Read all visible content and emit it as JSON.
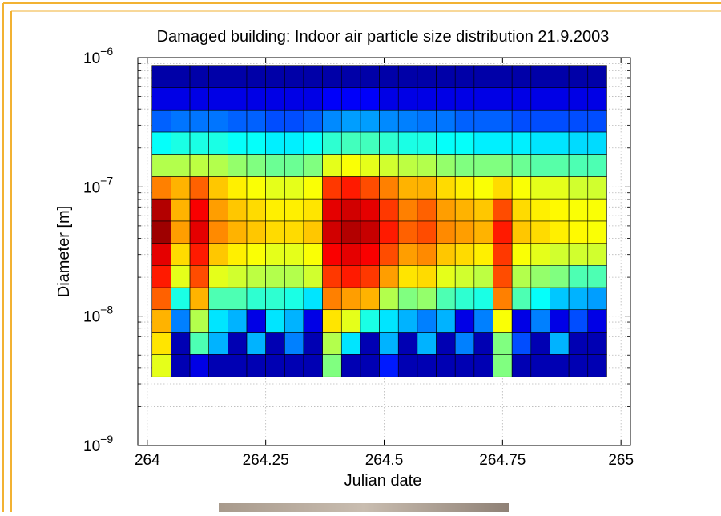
{
  "chart_data": {
    "type": "heatmap",
    "title": "Damaged building: Indoor air particle size distribution 21.9.2003",
    "x_label": "Julian date",
    "y_label": "Diameter [m]",
    "xlim": [
      263.98,
      265.02
    ],
    "xticks": [
      264,
      264.25,
      264.5,
      264.75,
      265
    ],
    "ylim": [
      1e-09,
      1e-06
    ],
    "yscale": "log",
    "yticks": [
      {
        "value": 1e-09,
        "label": "10",
        "exponent": "−9"
      },
      {
        "value": 1e-08,
        "label": "10",
        "exponent": "−8"
      },
      {
        "value": 1e-07,
        "label": "10",
        "exponent": "−7"
      },
      {
        "value": 1e-06,
        "label": "10",
        "exponent": "−6"
      }
    ],
    "grid": true,
    "colormap": "jet",
    "clim": [
      0,
      1
    ],
    "x_edges": [
      264.01,
      264.05,
      264.09,
      264.13,
      264.17,
      264.21,
      264.25,
      264.29,
      264.33,
      264.37,
      264.41,
      264.45,
      264.49,
      264.53,
      264.57,
      264.61,
      264.65,
      264.69,
      264.73,
      264.77,
      264.81,
      264.85,
      264.89,
      264.93,
      264.97
    ],
    "y_edges": [
      8.71e-07,
      5.86e-07,
      3.94e-07,
      2.65e-07,
      1.79e-07,
      1.2e-07,
      8.09e-08,
      5.44e-08,
      3.66e-08,
      2.47e-08,
      1.66e-08,
      1.12e-08,
      7.52e-09,
      5.06e-09,
      3.4e-09
    ],
    "z": [
      [
        0.04,
        0.04,
        0.04,
        0.04,
        0.04,
        0.04,
        0.04,
        0.04,
        0.04,
        0.04,
        0.04,
        0.04,
        0.04,
        0.04,
        0.04,
        0.04,
        0.04,
        0.04,
        0.04,
        0.04,
        0.04,
        0.04,
        0.04,
        0.04
      ],
      [
        0.1,
        0.1,
        0.1,
        0.1,
        0.1,
        0.1,
        0.1,
        0.1,
        0.1,
        0.12,
        0.12,
        0.12,
        0.1,
        0.1,
        0.1,
        0.1,
        0.1,
        0.1,
        0.1,
        0.1,
        0.1,
        0.1,
        0.1,
        0.1
      ],
      [
        0.22,
        0.24,
        0.24,
        0.24,
        0.22,
        0.22,
        0.2,
        0.2,
        0.22,
        0.26,
        0.28,
        0.28,
        0.26,
        0.25,
        0.24,
        0.24,
        0.22,
        0.22,
        0.22,
        0.2,
        0.2,
        0.2,
        0.2,
        0.2
      ],
      [
        0.38,
        0.4,
        0.4,
        0.4,
        0.38,
        0.38,
        0.36,
        0.36,
        0.38,
        0.42,
        0.44,
        0.44,
        0.42,
        0.4,
        0.4,
        0.38,
        0.38,
        0.36,
        0.36,
        0.36,
        0.35,
        0.35,
        0.34,
        0.34
      ],
      [
        0.55,
        0.55,
        0.56,
        0.55,
        0.52,
        0.5,
        0.48,
        0.48,
        0.5,
        0.6,
        0.62,
        0.6,
        0.58,
        0.56,
        0.55,
        0.52,
        0.5,
        0.5,
        0.5,
        0.48,
        0.46,
        0.46,
        0.45,
        0.45
      ],
      [
        0.75,
        0.7,
        0.78,
        0.68,
        0.64,
        0.62,
        0.6,
        0.6,
        0.62,
        0.82,
        0.85,
        0.8,
        0.75,
        0.7,
        0.7,
        0.66,
        0.64,
        0.62,
        0.66,
        0.62,
        0.6,
        0.6,
        0.58,
        0.58
      ],
      [
        0.95,
        0.7,
        0.88,
        0.72,
        0.68,
        0.66,
        0.64,
        0.64,
        0.65,
        0.9,
        0.92,
        0.9,
        0.82,
        0.75,
        0.78,
        0.72,
        0.7,
        0.68,
        0.8,
        0.66,
        0.64,
        0.63,
        0.62,
        0.62
      ],
      [
        0.97,
        0.72,
        0.9,
        0.74,
        0.7,
        0.68,
        0.66,
        0.66,
        0.68,
        0.92,
        0.95,
        0.93,
        0.85,
        0.78,
        0.8,
        0.74,
        0.72,
        0.7,
        0.85,
        0.68,
        0.66,
        0.64,
        0.63,
        0.62
      ],
      [
        0.9,
        0.66,
        0.85,
        0.68,
        0.64,
        0.62,
        0.6,
        0.6,
        0.62,
        0.88,
        0.9,
        0.88,
        0.8,
        0.72,
        0.74,
        0.68,
        0.66,
        0.64,
        0.82,
        0.62,
        0.6,
        0.58,
        0.58,
        0.58
      ],
      [
        0.85,
        0.6,
        0.8,
        0.6,
        0.58,
        0.56,
        0.55,
        0.55,
        0.58,
        0.82,
        0.85,
        0.82,
        0.72,
        0.65,
        0.66,
        0.6,
        0.58,
        0.56,
        0.8,
        0.55,
        0.52,
        0.5,
        0.45,
        0.45
      ],
      [
        0.78,
        0.4,
        0.7,
        0.45,
        0.45,
        0.42,
        0.42,
        0.4,
        0.35,
        0.75,
        0.72,
        0.7,
        0.55,
        0.5,
        0.52,
        0.45,
        0.42,
        0.4,
        0.75,
        0.45,
        0.38,
        0.32,
        0.3,
        0.28
      ],
      [
        0.7,
        0.25,
        0.55,
        0.35,
        0.3,
        0.1,
        0.35,
        0.3,
        0.1,
        0.65,
        0.6,
        0.4,
        0.35,
        0.3,
        0.25,
        0.3,
        0.1,
        0.25,
        0.62,
        0.1,
        0.25,
        0.1,
        0.2,
        0.1
      ],
      [
        0.65,
        0.05,
        0.45,
        0.3,
        0.05,
        0.3,
        0.05,
        0.25,
        0.05,
        0.55,
        0.35,
        0.05,
        0.3,
        0.05,
        0.3,
        0.05,
        0.25,
        0.05,
        0.5,
        0.2,
        0.05,
        0.3,
        0.05,
        0.05
      ],
      [
        0.6,
        0.05,
        0.1,
        0.05,
        0.05,
        0.05,
        0.05,
        0.05,
        0.05,
        0.5,
        0.05,
        0.05,
        0.15,
        0.05,
        0.05,
        0.05,
        0.05,
        0.05,
        0.5,
        0.05,
        0.05,
        0.05,
        0.05,
        0.05
      ]
    ]
  }
}
